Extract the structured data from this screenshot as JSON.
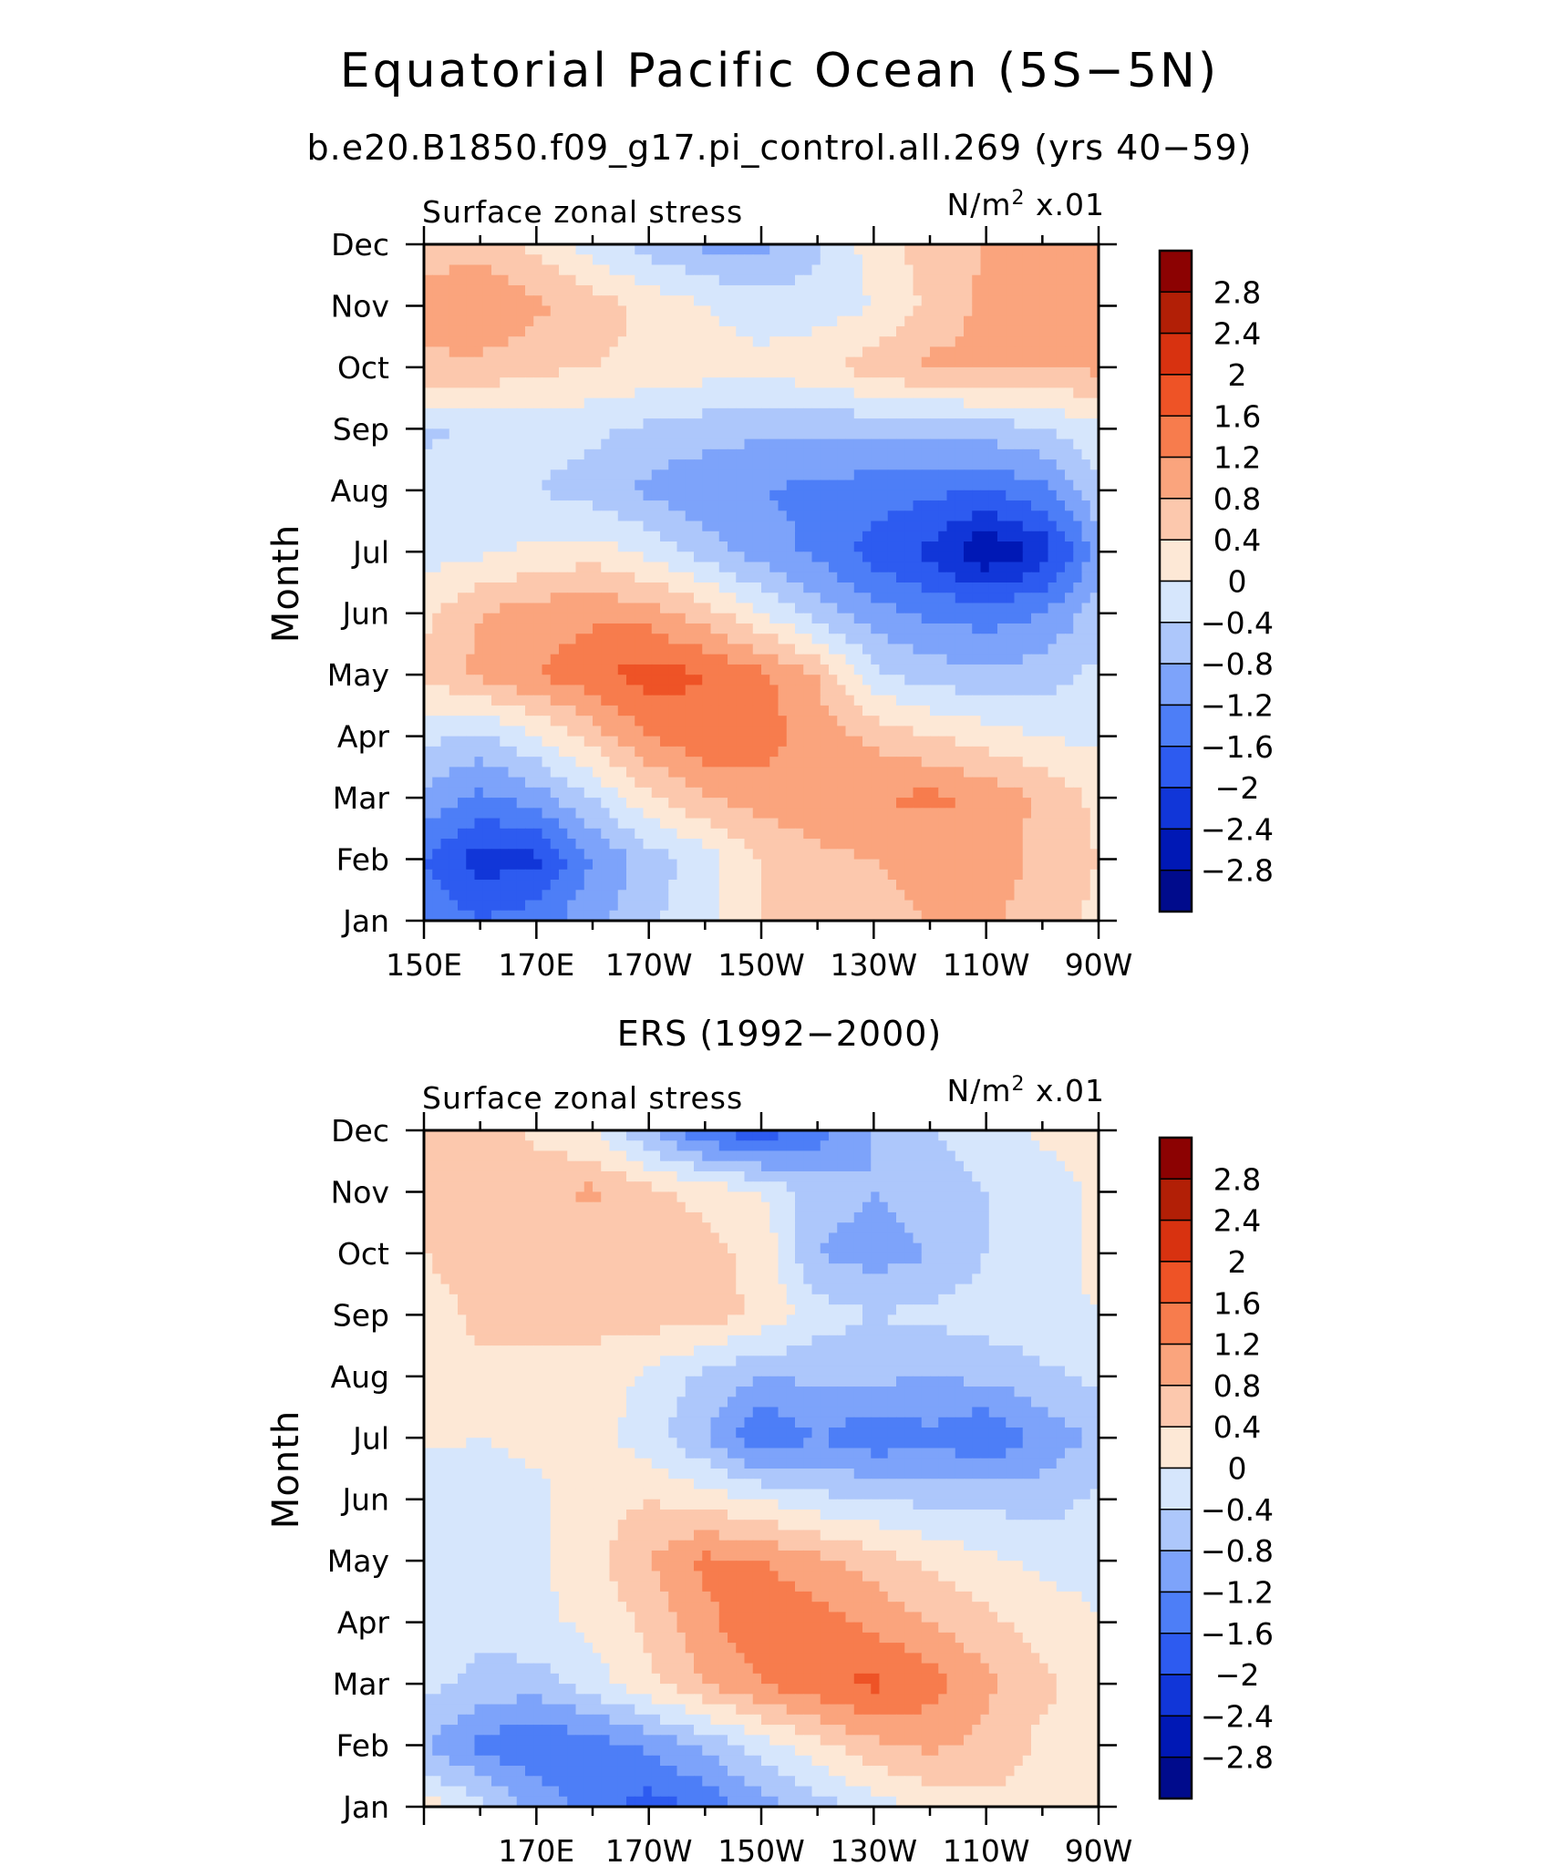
{
  "figure": {
    "title": "Equatorial Pacific Ocean (5S−5N)"
  },
  "palette": {
    "levels": [
      -3.2,
      -2.8,
      -2.4,
      -2.0,
      -1.6,
      -1.2,
      -0.8,
      -0.4,
      0,
      0.4,
      0.8,
      1.2,
      1.6,
      2.0,
      2.4,
      2.8,
      3.2
    ],
    "colors": [
      "#000b8c",
      "#0018b5",
      "#1136d8",
      "#2d5bf0",
      "#4d7ef7",
      "#7da3fa",
      "#adc7fb",
      "#d6e6fc",
      "#fde8d6",
      "#fcc8ad",
      "#faa47d",
      "#f77c4d",
      "#ee5326",
      "#d83210",
      "#b21f06",
      "#8c0202"
    ]
  },
  "chart_data": [
    {
      "type": "heatmap",
      "title": "b.e20.B1850.f09_g17.pi_control.all.269 (yrs 40−59)",
      "left_string": "Surface zonal stress",
      "right_units": "N/m",
      "right_exponent": "2",
      "right_scale": " x.01",
      "ylabel": "Month",
      "xlim": [
        150,
        270
      ],
      "x_tick_labels": [
        "150E",
        "170E",
        "170W",
        "150W",
        "130W",
        "110W",
        "90W"
      ],
      "y_tick_labels": [
        "Jan",
        "Feb",
        "Mar",
        "Apr",
        "May",
        "Jun",
        "Jul",
        "Aug",
        "Sep",
        "Oct",
        "Nov",
        "Dec"
      ],
      "colorbar_labels": [
        "2.8",
        "2.4",
        "2",
        "1.6",
        "1.2",
        "0.8",
        "0.4",
        "0",
        "−0.4",
        "−0.8",
        "−1.2",
        "−1.6",
        "−2",
        "−2.4",
        "−2.8"
      ],
      "x": [
        150,
        160,
        170,
        180,
        190,
        200,
        210,
        220,
        230,
        240,
        250,
        260,
        270
      ],
      "months": [
        "Jan",
        "Feb",
        "Mar",
        "Apr",
        "May",
        "Jun",
        "Jul",
        "Aug",
        "Sep",
        "Oct",
        "Nov",
        "Dec"
      ],
      "z": [
        [
          -1.2,
          -1.6,
          -1.4,
          -0.9,
          -0.5,
          -0.1,
          0.4,
          0.6,
          0.7,
          0.8,
          0.9,
          0.6,
          0.3
        ],
        [
          -1.6,
          -2.2,
          -2.1,
          -1.2,
          -0.6,
          -0.2,
          0.4,
          0.7,
          0.8,
          0.9,
          1.0,
          0.7,
          0.4
        ],
        [
          -0.9,
          -1.3,
          -1.0,
          -0.4,
          0.3,
          0.8,
          1.0,
          1.1,
          1.2,
          1.3,
          1.1,
          0.7,
          0.3
        ],
        [
          -0.3,
          -0.5,
          0.0,
          0.6,
          1.2,
          1.5,
          1.4,
          1.0,
          0.7,
          0.4,
          0.2,
          0.0,
          -0.1
        ],
        [
          0.5,
          0.9,
          1.2,
          1.5,
          1.8,
          1.6,
          1.3,
          0.8,
          -0.3,
          -0.6,
          -0.7,
          -0.6,
          -0.3
        ],
        [
          0.3,
          0.8,
          1.0,
          1.1,
          1.0,
          0.6,
          0.0,
          -0.6,
          -1.0,
          -1.3,
          -1.4,
          -1.2,
          -0.6
        ],
        [
          -0.2,
          -0.1,
          0.1,
          0.2,
          -0.1,
          -0.6,
          -1.0,
          -1.3,
          -1.8,
          -2.1,
          -2.8,
          -2.3,
          -1.0
        ],
        [
          -0.2,
          -0.3,
          -0.4,
          -0.6,
          -0.9,
          -1.1,
          -1.2,
          -1.3,
          -1.4,
          -1.5,
          -1.6,
          -1.3,
          -0.5
        ],
        [
          -0.5,
          -0.3,
          -0.2,
          -0.3,
          -0.5,
          -0.6,
          -0.7,
          -0.7,
          -0.7,
          -0.7,
          -0.6,
          -0.4,
          -0.1
        ],
        [
          0.7,
          0.7,
          0.5,
          0.4,
          0.3,
          0.2,
          0.1,
          0.3,
          0.6,
          0.9,
          0.9,
          0.8,
          0.9
        ],
        [
          1.0,
          1.2,
          0.9,
          0.6,
          0.3,
          0.0,
          -0.2,
          -0.2,
          0.0,
          0.5,
          0.9,
          0.9,
          0.9
        ],
        [
          0.6,
          0.6,
          0.3,
          -0.2,
          -0.6,
          -0.9,
          -0.9,
          -0.5,
          0.2,
          0.6,
          0.8,
          0.8,
          0.8
        ]
      ]
    },
    {
      "type": "heatmap",
      "title": "ERS (1992−2000)",
      "left_string": "Surface zonal stress",
      "right_units": "N/m",
      "right_exponent": "2",
      "right_scale": " x.01",
      "ylabel": "Month",
      "xlim": [
        150,
        270
      ],
      "x_tick_labels": [
        "",
        "170E",
        "170W",
        "150W",
        "130W",
        "110W",
        "90W"
      ],
      "y_tick_labels": [
        "Jan",
        "Feb",
        "Mar",
        "Apr",
        "May",
        "Jun",
        "Jul",
        "Aug",
        "Sep",
        "Oct",
        "Nov",
        "Dec"
      ],
      "colorbar_labels": [
        "2.8",
        "2.4",
        "2",
        "1.6",
        "1.2",
        "0.8",
        "0.4",
        "0",
        "−0.4",
        "−0.8",
        "−1.2",
        "−1.6",
        "−2",
        "−2.4",
        "−2.8"
      ],
      "x": [
        150,
        160,
        170,
        180,
        190,
        200,
        210,
        220,
        230,
        240,
        250,
        260,
        270
      ],
      "months": [
        "Jan",
        "Feb",
        "Mar",
        "Apr",
        "May",
        "Jun",
        "Jul",
        "Aug",
        "Sep",
        "Oct",
        "Nov",
        "Dec"
      ],
      "z": [
        [
          0.2,
          -0.3,
          -0.9,
          -1.4,
          -1.8,
          -1.5,
          -1.0,
          -0.6,
          -0.2,
          0.1,
          0.3,
          0.3,
          0.1
        ],
        [
          -0.8,
          -1.3,
          -1.6,
          -1.4,
          -1.1,
          -0.7,
          -0.2,
          0.3,
          0.7,
          0.9,
          0.7,
          0.3,
          0.1
        ],
        [
          -0.3,
          -0.5,
          -0.6,
          -0.2,
          0.3,
          0.8,
          1.2,
          1.5,
          1.7,
          1.4,
          0.9,
          0.5,
          0.2
        ],
        [
          -0.2,
          -0.3,
          -0.1,
          0.1,
          0.5,
          1.1,
          1.5,
          1.4,
          1.1,
          0.8,
          0.5,
          0.2,
          0.0
        ],
        [
          -0.2,
          -0.2,
          -0.1,
          0.3,
          0.8,
          1.3,
          1.2,
          0.9,
          0.6,
          0.3,
          0.1,
          -0.1,
          -0.1
        ],
        [
          -0.4,
          -0.2,
          -0.1,
          0.2,
          0.4,
          0.2,
          0.0,
          -0.3,
          -0.4,
          -0.5,
          -0.5,
          -0.6,
          -0.3
        ],
        [
          0.1,
          0.0,
          0.1,
          0.1,
          -0.2,
          -0.8,
          -1.6,
          -1.2,
          -1.5,
          -1.3,
          -1.6,
          -1.1,
          -0.7
        ],
        [
          0.2,
          0.3,
          0.4,
          0.3,
          -0.1,
          -0.5,
          -0.8,
          -0.7,
          -0.7,
          -0.8,
          -0.7,
          -0.5,
          -0.3
        ],
        [
          0.2,
          0.5,
          0.4,
          0.5,
          0.6,
          0.6,
          0.3,
          -0.2,
          -0.4,
          -0.3,
          -0.2,
          -0.1,
          0.0
        ],
        [
          0.4,
          0.6,
          0.6,
          0.4,
          0.6,
          0.5,
          0.3,
          -0.8,
          -1.0,
          -0.8,
          -0.4,
          -0.2,
          0.1
        ],
        [
          0.4,
          0.8,
          0.6,
          0.9,
          0.5,
          0.3,
          0.0,
          -0.6,
          -0.8,
          -0.6,
          -0.4,
          -0.2,
          0.1
        ],
        [
          0.4,
          0.7,
          0.3,
          0.0,
          -0.8,
          -1.6,
          -1.9,
          -1.4,
          -0.8,
          -0.4,
          -0.2,
          0.1,
          0.1
        ]
      ]
    }
  ]
}
